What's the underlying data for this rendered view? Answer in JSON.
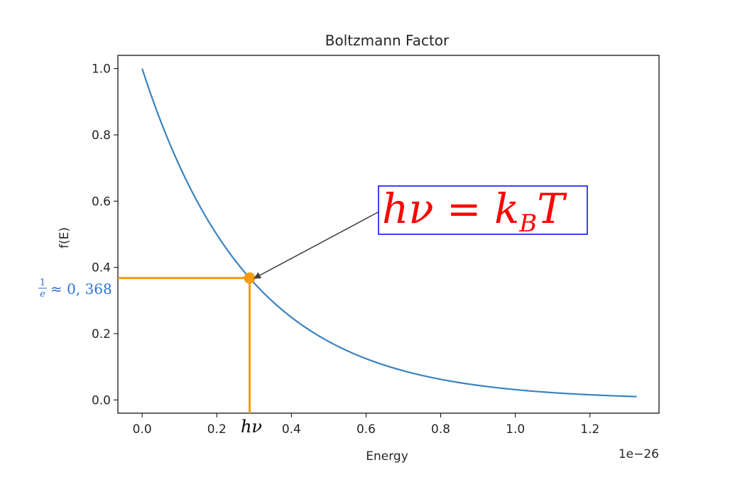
{
  "chart_data": {
    "type": "line",
    "title": "Boltzmann Factor",
    "xlabel": "Energy",
    "ylabel": "f(E)",
    "x_offset_label": "1e−26",
    "xlim": [
      -0.065,
      1.385
    ],
    "ylim": [
      -0.04,
      1.04
    ],
    "x_ticks": [
      0.0,
      0.2,
      0.4,
      0.6,
      0.8,
      1.0,
      1.2
    ],
    "x_tick_labels": [
      "0.0",
      "0.2",
      "0.4",
      "0.6",
      "0.8",
      "1.0",
      "1.2"
    ],
    "y_ticks": [
      0.0,
      0.2,
      0.4,
      0.6,
      0.8,
      1.0
    ],
    "y_tick_labels": [
      "0.0",
      "0.2",
      "0.4",
      "0.6",
      "0.8",
      "1.0"
    ],
    "grid": false,
    "series": [
      {
        "function": "exp(-x/0.288)",
        "x_start": 0.0,
        "x_end": 1.325,
        "color": "#3a83c0"
      }
    ],
    "marker": {
      "x": 0.288,
      "y": 0.368,
      "color": "#f39c12"
    },
    "guide_color": "#f39c12",
    "annotations": {
      "equation": {
        "text": "hν = k",
        "subscript": "B",
        "tail": "T",
        "color": "#ff0000",
        "border_color": "#0000ff"
      },
      "y_mark_label": {
        "frac_num": "1",
        "frac_den": "e",
        "rest": "≈ 0, 368",
        "color": "#2f6fd6"
      },
      "x_mark_label": {
        "text": "hν",
        "color": "#000000"
      }
    }
  }
}
